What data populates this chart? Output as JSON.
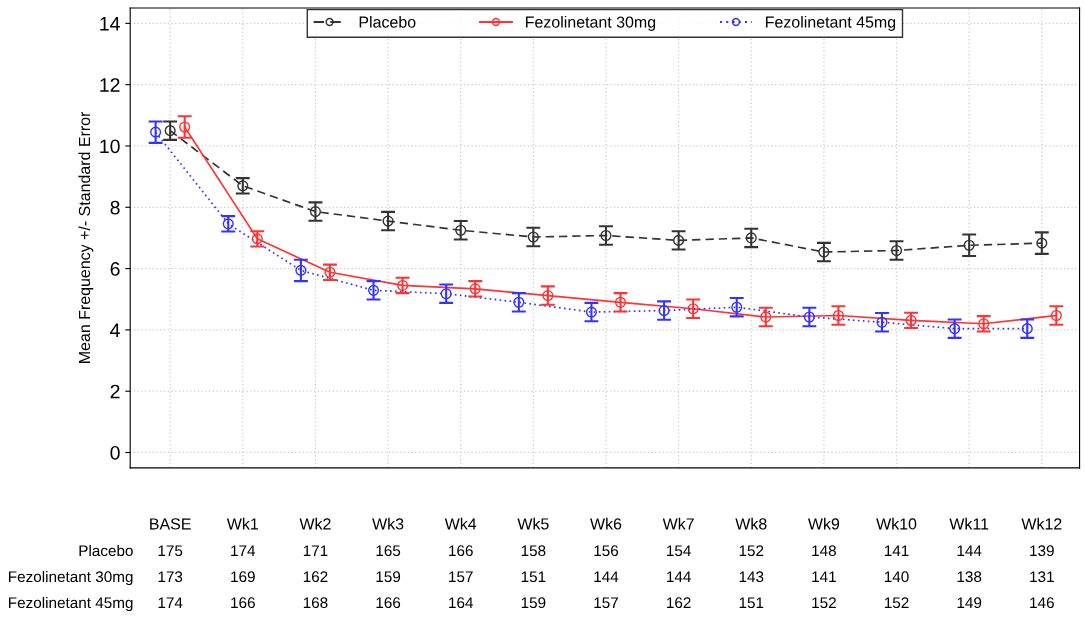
{
  "chart_data": {
    "type": "line",
    "ylabel": "Mean Frequency +/- Standard Error",
    "categories": [
      "BASE",
      "Wk1",
      "Wk2",
      "Wk3",
      "Wk4",
      "Wk5",
      "Wk6",
      "Wk7",
      "Wk8",
      "Wk9",
      "Wk10",
      "Wk11",
      "Wk12"
    ],
    "series": [
      {
        "name": "Placebo",
        "color": "#333333",
        "line_style": "dashed",
        "values": [
          10.5,
          8.7,
          7.86,
          7.55,
          7.25,
          7.03,
          7.08,
          6.92,
          7.0,
          6.54,
          6.59,
          6.76,
          6.83
        ],
        "errors": [
          0.3,
          0.25,
          0.3,
          0.3,
          0.3,
          0.3,
          0.3,
          0.3,
          0.3,
          0.3,
          0.3,
          0.35,
          0.35
        ]
      },
      {
        "name": "Fezolinetant 30mg",
        "color": "#ff3333",
        "line_style": "solid",
        "values": [
          10.62,
          6.97,
          5.88,
          5.45,
          5.34,
          5.12,
          4.9,
          4.69,
          4.42,
          4.47,
          4.31,
          4.2,
          4.47
        ],
        "errors": [
          0.35,
          0.25,
          0.25,
          0.25,
          0.25,
          0.3,
          0.3,
          0.3,
          0.3,
          0.3,
          0.25,
          0.25,
          0.3
        ]
      },
      {
        "name": "Fezolinetant 45mg",
        "color": "#3333ff",
        "line_style": "dotted",
        "values": [
          10.45,
          7.46,
          5.94,
          5.29,
          5.18,
          4.9,
          4.58,
          4.63,
          4.74,
          4.42,
          4.25,
          4.04,
          4.04
        ],
        "errors": [
          0.35,
          0.25,
          0.35,
          0.3,
          0.3,
          0.3,
          0.3,
          0.3,
          0.3,
          0.3,
          0.3,
          0.3,
          0.3
        ]
      }
    ],
    "ylim": [
      -0.5,
      14.5
    ],
    "yticks": [
      0,
      2,
      4,
      6,
      8,
      10,
      12,
      14
    ],
    "grid": true,
    "legend": "top",
    "marker": "circle",
    "annotations": [
      "Placebo",
      "175",
      "174",
      "171",
      "165",
      "166",
      "158",
      "156",
      "154",
      "152",
      "148",
      "141",
      "144",
      "139",
      "Fezolinetant 30mg",
      "173",
      "169",
      "162",
      "159",
      "157",
      "151",
      "144",
      "144",
      "143",
      "141",
      "140",
      "138",
      "131",
      "Fezolinetant 45mg",
      "174",
      "166",
      "168",
      "166",
      "164",
      "159",
      "157",
      "162",
      "151",
      "152",
      "152",
      "149",
      "146"
    ]
  }
}
